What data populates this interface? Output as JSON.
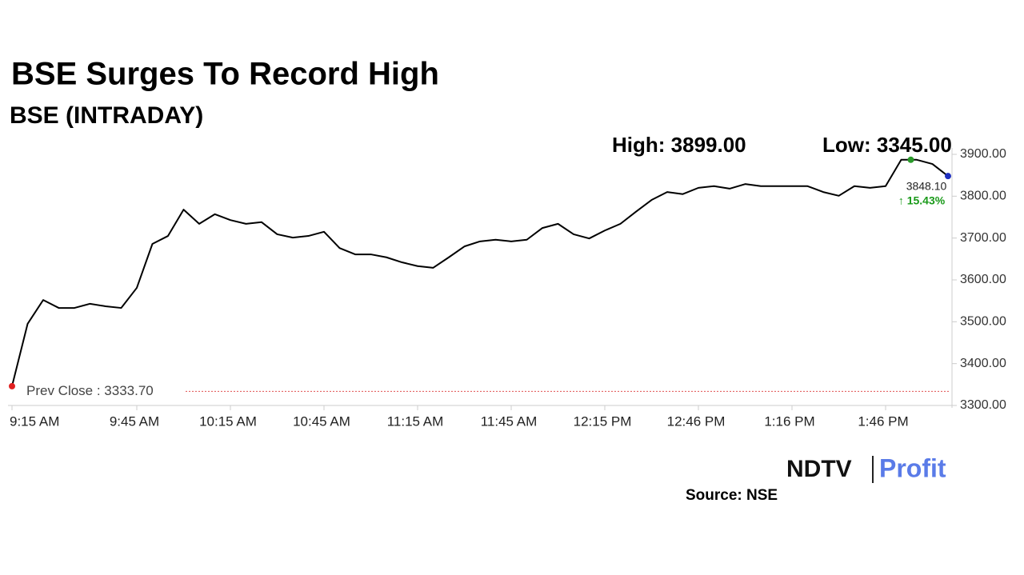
{
  "chart_data": {
    "type": "line",
    "title": "BSE Surges To Record High",
    "subtitle": "BSE (INTRADAY)",
    "high_label": "High: 3899.00",
    "low_label": "Low: 3345.00",
    "categories": [
      "9:15 AM",
      null,
      null,
      null,
      null,
      null,
      null,
      null,
      "9:45 AM",
      null,
      null,
      null,
      null,
      null,
      "10:15 AM",
      null,
      null,
      null,
      null,
      null,
      "10:45 AM",
      null,
      null,
      null,
      null,
      null,
      "11:15 AM",
      null,
      null,
      null,
      null,
      null,
      "11:45 AM",
      null,
      null,
      null,
      null,
      null,
      "12:15 PM",
      null,
      null,
      null,
      null,
      null,
      "12:46 PM",
      null,
      null,
      null,
      null,
      null,
      "1:16 PM",
      null,
      null,
      null,
      null,
      null,
      "1:46 PM",
      null,
      null,
      null,
      null
    ],
    "series": [
      {
        "name": "BSE",
        "color": "#000000",
        "values": [
          3346,
          3495,
          3552,
          3533,
          3533,
          3543,
          3537,
          3533,
          3581,
          3686,
          3705,
          3768,
          3734,
          3757,
          3743,
          3734,
          3738,
          3709,
          3701,
          3705,
          3715,
          3676,
          3661,
          3661,
          3654,
          3642,
          3633,
          3629,
          3654,
          3680,
          3692,
          3696,
          3692,
          3696,
          3724,
          3734,
          3709,
          3699,
          3718,
          3734,
          3763,
          3791,
          3810,
          3805,
          3820,
          3824,
          3818,
          3829,
          3824,
          3824,
          3824,
          3824,
          3810,
          3801,
          3824,
          3820,
          3824,
          3887,
          3887,
          3877,
          3848.1
        ]
      }
    ],
    "last_label": "3848.10",
    "change_label": "↑ 15.43%",
    "prev_close": 3333.7,
    "prev_close_label": "Prev Close : 3333.70",
    "ylim": [
      3300,
      3900
    ],
    "yticks": [
      {
        "value": 3300,
        "label": "3300.00"
      },
      {
        "value": 3400,
        "label": "3400.00"
      },
      {
        "value": 3500,
        "label": "3500.00"
      },
      {
        "value": 3600,
        "label": "3600.00"
      },
      {
        "value": 3700,
        "label": "3700.00"
      },
      {
        "value": 3800,
        "label": "3800.00"
      },
      {
        "value": 3900,
        "label": "3900.00"
      }
    ],
    "source": "Source: NSE",
    "logo_left": "NDTV",
    "logo_right": "Profit"
  }
}
